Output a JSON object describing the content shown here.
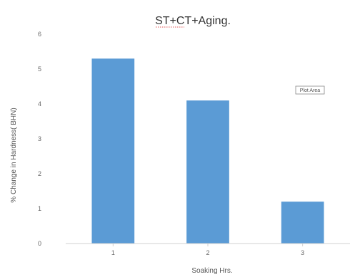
{
  "chart_data": {
    "type": "bar",
    "title": "ST+CT+Aging.",
    "xlabel": "Soaking Hrs.",
    "ylabel": "% Change in Hardness( BHN)",
    "categories": [
      "1",
      "2",
      "3"
    ],
    "values": [
      5.3,
      4.1,
      1.2
    ],
    "ylim": [
      0,
      6
    ],
    "yticks": [
      "0",
      "1",
      "2",
      "3",
      "4",
      "5",
      "6"
    ],
    "annotation": "Plot Area",
    "grid": false,
    "legend": "none",
    "bar_color": "#5b9bd5",
    "title_underline_color": "#e05050"
  }
}
